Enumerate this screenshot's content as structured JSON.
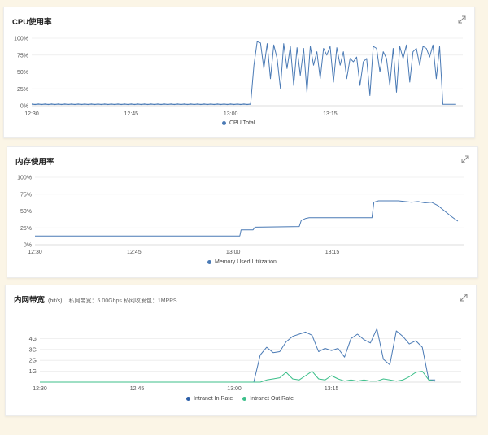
{
  "panels": {
    "cpu": {
      "title": "CPU使用率",
      "legend": [
        "CPU Total"
      ]
    },
    "mem": {
      "title": "内存使用率",
      "legend": [
        "Memory Used Utilization"
      ]
    },
    "net": {
      "title": "内网带宽",
      "unit": "(bit/s)",
      "meta": "私网带宽：5.00Gbps 私网收发包：1MPPS",
      "legend": [
        "Intranet In Rate",
        "Intranet Out Rate"
      ]
    }
  },
  "colors": {
    "in": "#4a7ab5",
    "out": "#3cbf8a",
    "mem": "#4a7ab5",
    "cpu": "#4a7ab5",
    "grid": "#ebebeb"
  },
  "chart_data": [
    {
      "type": "line",
      "title": "CPU使用率",
      "xlabel": "",
      "ylabel": "",
      "x_ticks": [
        "12:30",
        "12:45",
        "13:00",
        "13:15"
      ],
      "y_ticks": [
        "100%",
        "75%",
        "50%",
        "25%",
        "0%"
      ],
      "ylim": [
        0,
        100
      ],
      "xlim_minutes": [
        0,
        65
      ],
      "series": [
        {
          "name": "CPU Total",
          "x_minutes": [
            0,
            33,
            33.5,
            34,
            34.5,
            35,
            35.5,
            36,
            36.5,
            37,
            37.5,
            38,
            38.5,
            39,
            39.5,
            40,
            40.5,
            41,
            41.5,
            42,
            42.5,
            43,
            43.5,
            44,
            44.5,
            45,
            45.5,
            46,
            46.5,
            47,
            47.5,
            48,
            48.5,
            49,
            49.5,
            50,
            50.5,
            51,
            51.5,
            52,
            52.5,
            53,
            53.5,
            54,
            54.5,
            55,
            55.5,
            56,
            56.5,
            57,
            57.5,
            58,
            58.5,
            59,
            59.5,
            60,
            60.5,
            61,
            61.5,
            62,
            64
          ],
          "values": [
            2,
            2,
            60,
            95,
            93,
            55,
            92,
            40,
            90,
            70,
            25,
            92,
            55,
            88,
            30,
            86,
            45,
            85,
            20,
            88,
            60,
            80,
            40,
            85,
            75,
            88,
            35,
            86,
            60,
            80,
            40,
            70,
            65,
            72,
            30,
            65,
            70,
            15,
            88,
            85,
            50,
            80,
            70,
            30,
            85,
            20,
            88,
            70,
            90,
            35,
            80,
            85,
            60,
            88,
            85,
            72,
            90,
            40,
            88,
            2,
            2
          ]
        }
      ]
    },
    {
      "type": "line",
      "title": "内存使用率",
      "xlabel": "",
      "ylabel": "",
      "x_ticks": [
        "12:30",
        "12:45",
        "13:00",
        "13:15"
      ],
      "y_ticks": [
        "100%",
        "75%",
        "50%",
        "25%",
        "0%"
      ],
      "ylim": [
        0,
        100
      ],
      "xlim_minutes": [
        0,
        65
      ],
      "series": [
        {
          "name": "Memory Used Utilization",
          "x_minutes": [
            0,
            31,
            31.2,
            33,
            33.3,
            40,
            40.3,
            41,
            41.5,
            51,
            51.3,
            52,
            55,
            56,
            57,
            58,
            59,
            60,
            61,
            62,
            63,
            64
          ],
          "values": [
            13,
            13,
            22,
            22,
            26,
            27,
            36,
            39,
            40,
            40,
            63,
            65,
            65,
            64,
            63,
            64,
            62,
            63,
            58,
            50,
            42,
            35
          ]
        }
      ]
    },
    {
      "type": "line",
      "title": "内网带宽",
      "xlabel": "",
      "ylabel": "(bit/s)",
      "x_ticks": [
        "12:30",
        "12:45",
        "13:00",
        "13:15"
      ],
      "y_ticks": [
        "4G",
        "3G",
        "2G",
        "1G"
      ],
      "ylim": [
        0,
        5
      ],
      "xlim_minutes": [
        0,
        65
      ],
      "series": [
        {
          "name": "Intranet In Rate",
          "x_minutes": [
            0,
            33,
            34,
            35,
            36,
            37,
            38,
            39,
            40,
            41,
            42,
            43,
            44,
            45,
            46,
            47,
            48,
            49,
            50,
            51,
            52,
            53,
            54,
            55,
            56,
            57,
            58,
            59,
            60,
            61
          ],
          "values": [
            0,
            0,
            2.5,
            3.2,
            2.7,
            2.8,
            3.7,
            4.2,
            4.4,
            4.6,
            4.3,
            2.8,
            3.1,
            2.9,
            3.1,
            2.3,
            4.0,
            4.4,
            3.9,
            3.6,
            4.9,
            2.1,
            1.6,
            4.7,
            4.2,
            3.5,
            3.8,
            3.2,
            0.2,
            0.2
          ],
          "color": "#4a7ab5"
        },
        {
          "name": "Intranet Out Rate",
          "x_minutes": [
            0,
            34,
            35,
            36,
            37,
            38,
            39,
            40,
            41,
            42,
            43,
            44,
            45,
            46,
            47,
            48,
            49,
            50,
            51,
            52,
            53,
            54,
            55,
            56,
            57,
            58,
            59,
            60,
            61
          ],
          "values": [
            0,
            0,
            0.2,
            0.3,
            0.4,
            0.9,
            0.3,
            0.2,
            0.6,
            1.0,
            0.3,
            0.2,
            0.6,
            0.3,
            0.1,
            0.2,
            0.1,
            0.2,
            0.1,
            0.1,
            0.3,
            0.2,
            0.1,
            0.2,
            0.5,
            0.9,
            1.0,
            0.2,
            0.1
          ],
          "color": "#3cbf8a"
        }
      ]
    }
  ]
}
